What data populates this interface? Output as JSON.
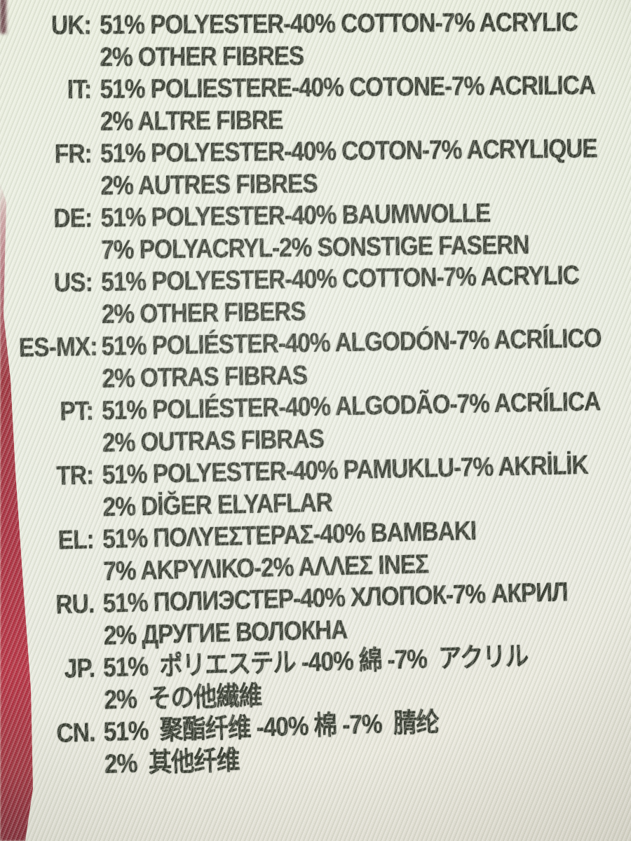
{
  "colors": {
    "fabric": "#e8ebdf",
    "ink": "#2f3429",
    "garment_red": "#a32334",
    "garment_dark_red": "#7e2330",
    "edge_pink": "#c9989b",
    "corner_maroon": "#6d454b"
  },
  "label": {
    "rows": [
      {
        "code": "UK:",
        "line1": "51% POLYESTER-40% COTTON-7% ACRYLIC",
        "line2": "2% OTHER FIBRES"
      },
      {
        "code": "IT:",
        "line1": "51% POLIESTERE-40% COTONE-7% ACRILICA",
        "line2": "2% ALTRE FIBRE"
      },
      {
        "code": "FR:",
        "line1": "51% POLYESTER-40% COTON-7% ACRYLIQUE",
        "line2": "2% AUTRES FIBRES"
      },
      {
        "code": "DE:",
        "line1": "51% POLYESTER-40% BAUMWOLLE",
        "line2": "7% POLYACRYL-2% SONSTIGE FASERN"
      },
      {
        "code": "US:",
        "line1": "51% POLYESTER-40% COTTON-7% ACRYLIC",
        "line2": "2% OTHER FIBERS"
      },
      {
        "code": "ES-MX:",
        "line1": "51% POLIÉSTER-40% ALGODÓN-7% ACRÍLICO",
        "line2": "2% OTRAS FIBRAS"
      },
      {
        "code": "PT:",
        "line1": "51% POLIÉSTER-40% ALGODÃO-7% ACRÍLICA",
        "line2": "2% OUTRAS FIBRAS"
      },
      {
        "code": "TR:",
        "line1": "51% POLYESTER-40% PAMUKLU-7% AKRİLİK",
        "line2": "2% DİĞER ELYAFLAR"
      },
      {
        "code": "EL:",
        "line1": "51% ΠΟΛΥΕΣΤΕΡΑΣ-40% ΒΑΜΒΑΚΙ",
        "line2": "7% ΑΚΡΥΛΙΚΟ-2% ΑΛΛΕΣ ΙΝΕΣ"
      },
      {
        "code": "RU.",
        "line1": "51% ПОЛИЭСТЕР-40% ХЛОПОК-7% АКРИЛ",
        "line2": "2% ДРУГИЕ ВОЛОКНА"
      },
      {
        "code": "JP.",
        "line1": "51%  ポリエステル -40% 綿 -7%  アクリル",
        "line2": "2%  その他繊維"
      },
      {
        "code": "CN.",
        "line1": "51%  聚酯纤维 -40% 棉 -7%  腈纶",
        "line2": "2%  其他纤维"
      }
    ]
  }
}
